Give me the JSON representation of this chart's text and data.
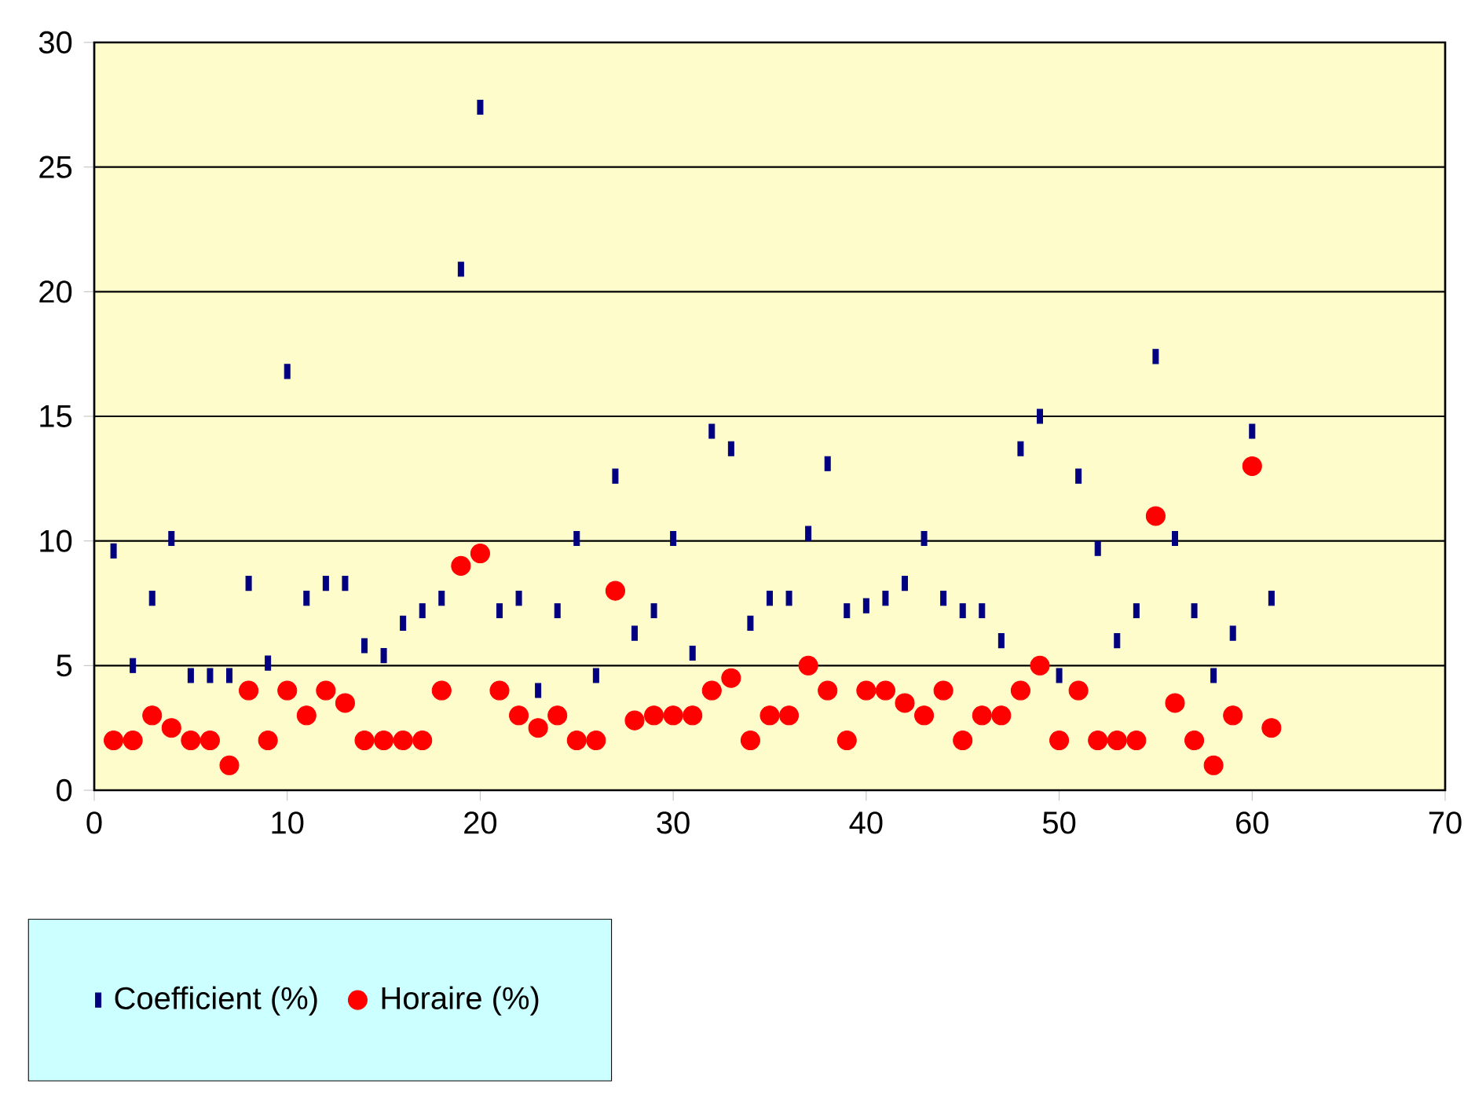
{
  "chart_data": {
    "type": "scatter",
    "x": [
      1,
      2,
      3,
      4,
      5,
      6,
      7,
      8,
      9,
      10,
      11,
      12,
      13,
      14,
      15,
      16,
      17,
      18,
      19,
      20,
      21,
      22,
      23,
      24,
      25,
      26,
      27,
      28,
      29,
      30,
      31,
      32,
      33,
      34,
      35,
      36,
      37,
      38,
      39,
      40,
      41,
      42,
      43,
      44,
      45,
      46,
      47,
      48,
      49,
      50,
      51,
      52,
      53,
      54,
      55,
      56,
      57,
      58,
      59,
      60,
      61
    ],
    "series": [
      {
        "name": "Coefficient (%)",
        "color": "#000080",
        "marker": "square",
        "values": [
          9.6,
          5.0,
          7.7,
          10.1,
          4.6,
          4.6,
          4.6,
          8.3,
          5.1,
          16.8,
          7.7,
          8.3,
          8.3,
          5.8,
          5.4,
          6.7,
          7.2,
          7.7,
          20.9,
          27.4,
          7.2,
          7.7,
          4.0,
          7.2,
          10.1,
          4.6,
          12.6,
          6.3,
          7.2,
          10.1,
          5.5,
          14.4,
          13.7,
          6.7,
          7.7,
          7.7,
          10.3,
          13.1,
          7.2,
          7.4,
          7.7,
          8.3,
          10.1,
          7.7,
          7.2,
          7.2,
          6.0,
          13.7,
          15.0,
          4.6,
          12.6,
          9.7,
          6.0,
          7.2,
          17.4,
          10.1,
          7.2,
          4.6,
          6.3,
          14.4,
          7.7
        ]
      },
      {
        "name": "Horaire (%)",
        "color": "#ff0000",
        "marker": "circle",
        "values": [
          2,
          2,
          3,
          2.5,
          2,
          2,
          1,
          4,
          2,
          4,
          3,
          4,
          3.5,
          2,
          2,
          2,
          2,
          4,
          9,
          9.5,
          4,
          3,
          2.5,
          3,
          2,
          2,
          8,
          2.8,
          3,
          3,
          3,
          4,
          4.5,
          2,
          3,
          3,
          5,
          4,
          2,
          4,
          4,
          3.5,
          3,
          4,
          2,
          3,
          3,
          4,
          5,
          2,
          4,
          2,
          2,
          2,
          11,
          3.5,
          2,
          1,
          3,
          13,
          2.5
        ]
      }
    ],
    "xlim": [
      0,
      70
    ],
    "xticks": [
      0,
      10,
      20,
      30,
      40,
      50,
      60,
      70
    ],
    "ylim": [
      0,
      30
    ],
    "yticks": [
      0,
      5,
      10,
      15,
      20,
      25,
      30
    ],
    "grid": "y",
    "legend": "bottom left"
  }
}
